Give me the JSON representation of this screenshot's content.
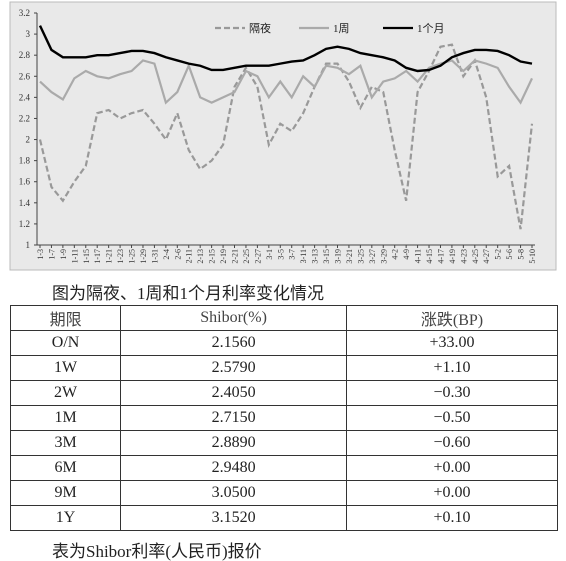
{
  "chart_data": {
    "type": "line",
    "ylim": [
      1,
      3.2
    ],
    "yticks": [
      1,
      1.2,
      1.4,
      1.6,
      1.8,
      2,
      2.2,
      2.4,
      2.6,
      2.8,
      3,
      3.2
    ],
    "categories": [
      "1-3",
      "1-7",
      "1-9",
      "1-11",
      "1-15",
      "1-17",
      "1-21",
      "1-23",
      "1-25",
      "1-29",
      "1-31",
      "2-4",
      "2-6",
      "2-11",
      "2-13",
      "2-15",
      "2-19",
      "2-21",
      "2-25",
      "2-27",
      "3-1",
      "3-5",
      "3-7",
      "3-11",
      "3-13",
      "3-15",
      "3-19",
      "3-21",
      "3-25",
      "3-27",
      "3-29",
      "4-2",
      "4-9",
      "4-11",
      "4-15",
      "4-17",
      "4-19",
      "4-23",
      "4-25",
      "4-27",
      "5-2",
      "5-6",
      "5-8",
      "5-10"
    ],
    "series": [
      {
        "name": "隔夜",
        "color": "#999999",
        "dashed": true,
        "values": [
          2.0,
          1.55,
          1.42,
          1.6,
          1.75,
          2.25,
          2.28,
          2.2,
          2.25,
          2.28,
          2.15,
          2.0,
          2.25,
          1.9,
          1.72,
          1.8,
          1.95,
          2.5,
          2.68,
          2.5,
          1.95,
          2.15,
          2.08,
          2.25,
          2.5,
          2.72,
          2.72,
          2.55,
          2.3,
          2.5,
          2.45,
          1.9,
          1.42,
          2.45,
          2.65,
          2.88,
          2.9,
          2.6,
          2.75,
          2.4,
          1.65,
          1.75,
          1.15,
          2.15
        ]
      },
      {
        "name": "1周",
        "color": "#aaaaaa",
        "dashed": false,
        "values": [
          2.55,
          2.45,
          2.38,
          2.58,
          2.65,
          2.6,
          2.58,
          2.62,
          2.65,
          2.75,
          2.72,
          2.35,
          2.45,
          2.7,
          2.4,
          2.35,
          2.4,
          2.45,
          2.65,
          2.6,
          2.4,
          2.55,
          2.4,
          2.6,
          2.5,
          2.7,
          2.68,
          2.62,
          2.7,
          2.4,
          2.55,
          2.58,
          2.65,
          2.55,
          2.68,
          2.72,
          2.75,
          2.65,
          2.75,
          2.72,
          2.68,
          2.5,
          2.35,
          2.58
        ]
      },
      {
        "name": "1个月",
        "color": "#000000",
        "dashed": false,
        "values": [
          3.08,
          2.85,
          2.78,
          2.78,
          2.78,
          2.8,
          2.8,
          2.82,
          2.84,
          2.84,
          2.82,
          2.78,
          2.75,
          2.72,
          2.7,
          2.66,
          2.66,
          2.68,
          2.7,
          2.7,
          2.7,
          2.72,
          2.74,
          2.75,
          2.8,
          2.86,
          2.88,
          2.86,
          2.82,
          2.8,
          2.78,
          2.75,
          2.68,
          2.65,
          2.66,
          2.7,
          2.78,
          2.82,
          2.85,
          2.85,
          2.84,
          2.8,
          2.74,
          2.72
        ]
      }
    ]
  },
  "chart_caption": "图为隔夜、1周和1个月利率变化情况",
  "table": {
    "header": [
      "期限",
      "Shibor(%)",
      "涨跌(BP)"
    ],
    "rows": [
      [
        "O/N",
        "2.1560",
        "+33.00"
      ],
      [
        "1W",
        "2.5790",
        "+1.10"
      ],
      [
        "2W",
        "2.4050",
        "−0.30"
      ],
      [
        "1M",
        "2.7150",
        "−0.50"
      ],
      [
        "3M",
        "2.8890",
        "−0.60"
      ],
      [
        "6M",
        "2.9480",
        "+0.00"
      ],
      [
        "9M",
        "3.0500",
        "+0.00"
      ],
      [
        "1Y",
        "3.1520",
        "+0.10"
      ]
    ]
  },
  "table_caption": "表为Shibor利率(人民币)报价"
}
